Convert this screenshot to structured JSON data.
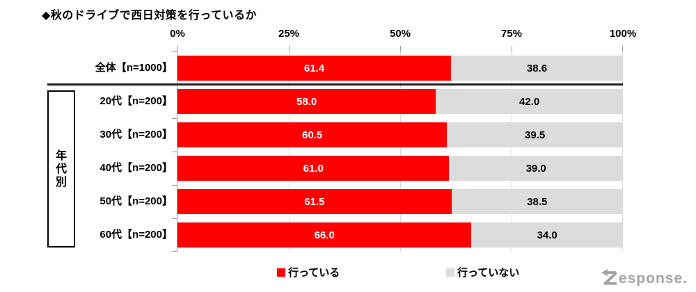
{
  "title": "◆秋のドライブで西日対策を行っているか",
  "axis": {
    "ticks": [
      "0%",
      "25%",
      "50%",
      "75%",
      "100%"
    ]
  },
  "group_label": {
    "chars": [
      "年",
      "代",
      "別"
    ],
    "text": "年代別"
  },
  "legend": {
    "items": [
      {
        "label": "行っている",
        "color": "#ff0000"
      },
      {
        "label": "行っていない",
        "color": "#dcdcdc"
      }
    ]
  },
  "watermark": "Response.",
  "colors": {
    "bar_yes": "#ff0000",
    "bar_no": "#dcdcdc",
    "value_on_yes": "#ffffff",
    "value_on_no": "#000000",
    "separator": "#1f1f1f",
    "gridline": "#d9d9d9",
    "watermark": "#a3a3a3"
  },
  "chart_data": {
    "type": "bar",
    "orientation": "horizontal",
    "stacked": true,
    "title": "◆秋のドライブで西日対策を行っているか",
    "categories": [
      "全体【n=1000】",
      "20代【n=200】",
      "30代【n=200】",
      "40代【n=200】",
      "50代【n=200】",
      "60代【n=200】"
    ],
    "series": [
      {
        "name": "行っている",
        "color": "#ff0000",
        "values": [
          61.4,
          58.0,
          60.5,
          61.0,
          61.5,
          66.0
        ]
      },
      {
        "name": "行っていない",
        "color": "#dcdcdc",
        "values": [
          38.6,
          42.0,
          39.5,
          39.0,
          38.5,
          34.0
        ]
      }
    ],
    "xlim": [
      0,
      100
    ],
    "x_ticks": [
      "0%",
      "25%",
      "50%",
      "75%",
      "100%"
    ],
    "value_format": "one_decimal",
    "grid": true,
    "legend_position": "bottom",
    "group_brackets": [
      {
        "label": "年代別",
        "rows": [
          1,
          2,
          3,
          4,
          5
        ]
      }
    ]
  }
}
